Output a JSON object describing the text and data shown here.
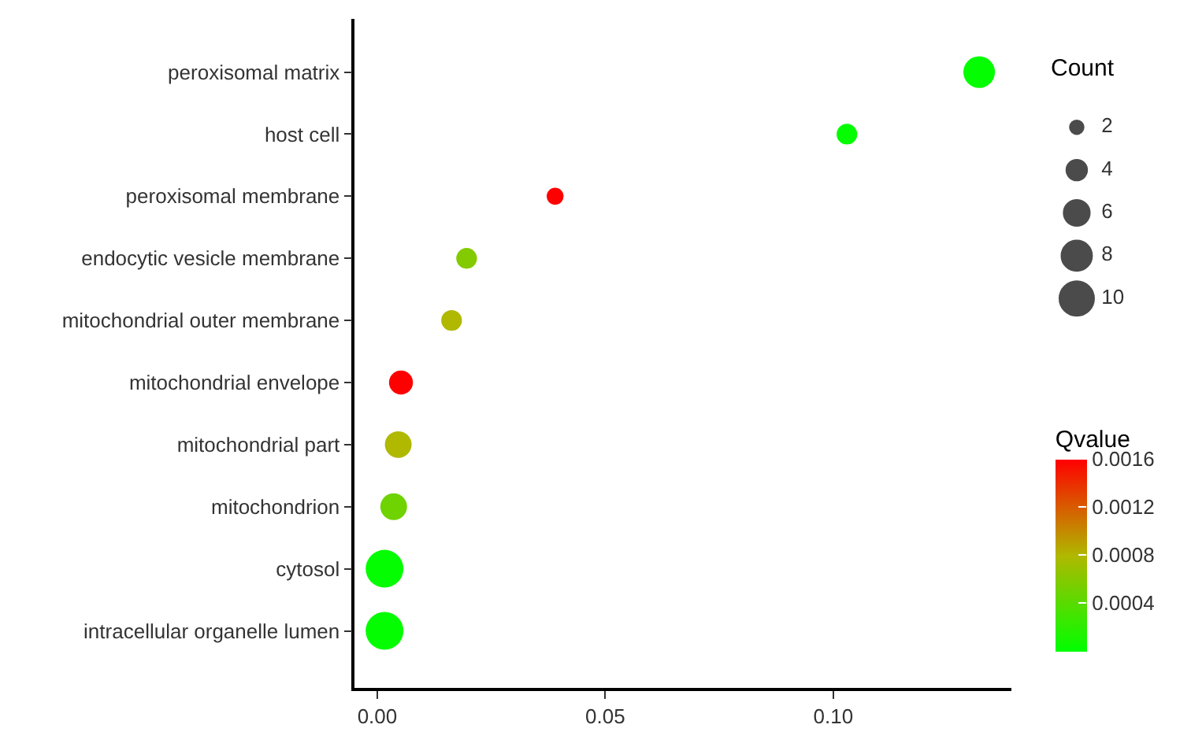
{
  "chart_data": {
    "type": "bubble",
    "categories": [
      "peroxisomal matrix",
      "host cell",
      "peroxisomal membrane",
      "endocytic vesicle membrane",
      "mitochondrial outer membrane",
      "mitochondrial envelope",
      "mitochondrial part",
      "mitochondrion",
      "cytosol",
      "intracellular organelle lumen"
    ],
    "values": [
      0.132,
      0.103,
      0.039,
      0.0196,
      0.0163,
      0.0052,
      0.0046,
      0.0036,
      0.0016,
      0.0016
    ],
    "sizes": [
      7,
      3,
      2,
      3,
      3,
      4,
      5,
      5,
      10,
      10
    ],
    "cvalues": [
      2e-05,
      2e-05,
      0.0016,
      0.0006,
      0.0008,
      0.0016,
      0.0008,
      0.0005,
      2e-05,
      2e-05
    ],
    "size_legend": [
      2,
      4,
      6,
      8,
      10
    ],
    "legend_title": "Count",
    "clabel": "Qvalue",
    "clim": [
      0,
      0.0016
    ],
    "cticks": [
      0.0004,
      0.0008,
      0.0012,
      0.0016
    ],
    "xlim": [
      -0.005,
      0.139
    ],
    "xticks": [
      {
        "value": 0,
        "label": "0.00"
      },
      0.05,
      {
        "value": 0.1,
        "label": "0.10"
      }
    ],
    "orientation": "horizontal",
    "marker": "circle"
  }
}
